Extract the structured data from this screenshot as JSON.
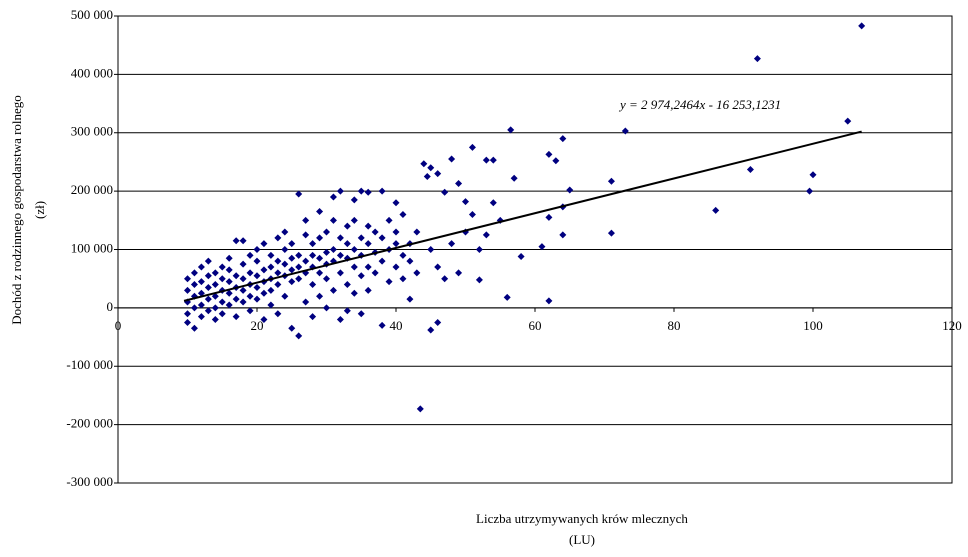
{
  "chart_data": {
    "type": "scatter",
    "x_label": [
      "Liczba utrzymywanych krów mlecznych",
      "(LU)"
    ],
    "y_label": [
      "Dochód z rodzinnego gospodarstwa rolnego",
      "(zł)"
    ],
    "xlim": [
      0,
      120
    ],
    "xticks": [
      0,
      20,
      40,
      60,
      80,
      100,
      120
    ],
    "ylim": [
      -300000,
      500000
    ],
    "yticks": [
      {
        "value": -300000,
        "label": "-300 000"
      },
      {
        "value": -200000,
        "label": "-200 000"
      },
      {
        "value": -100000,
        "label": "-100 000"
      },
      0,
      {
        "value": 100000,
        "label": "100 000"
      },
      {
        "value": 200000,
        "label": "200 000"
      },
      {
        "value": 300000,
        "label": "300 000"
      },
      {
        "value": 400000,
        "label": "400 000"
      },
      {
        "value": 500000,
        "label": "500 000"
      }
    ],
    "grid": true,
    "series": [
      {
        "color": "#000080",
        "x": [
          10,
          10,
          10,
          10,
          10,
          11,
          11,
          11,
          11,
          11,
          12,
          12,
          12,
          12,
          12,
          13,
          13,
          13,
          13,
          13,
          14,
          14,
          14,
          14,
          14,
          15,
          15,
          15,
          15,
          15,
          16,
          16,
          16,
          16,
          16,
          17,
          17,
          17,
          17,
          17,
          18,
          18,
          18,
          18,
          18,
          19,
          19,
          19,
          19,
          19,
          20,
          20,
          20,
          20,
          20,
          21,
          21,
          21,
          21,
          21,
          22,
          22,
          22,
          22,
          22,
          23,
          23,
          23,
          23,
          23,
          24,
          24,
          24,
          24,
          24,
          25,
          25,
          25,
          25,
          25,
          26,
          26,
          26,
          26,
          26,
          27,
          27,
          27,
          27,
          27,
          28,
          28,
          28,
          28,
          28,
          29,
          29,
          29,
          29,
          29,
          30,
          30,
          30,
          30,
          30,
          31,
          31,
          31,
          31,
          31,
          32,
          32,
          32,
          32,
          32,
          33,
          33,
          33,
          33,
          33,
          34,
          34,
          34,
          34,
          34,
          35,
          35,
          35,
          35,
          35,
          36,
          36,
          36,
          36,
          36,
          37,
          37,
          37,
          38,
          38,
          38,
          38,
          39,
          39,
          39,
          40,
          40,
          40,
          40,
          41,
          41,
          41,
          42,
          42,
          42,
          43,
          43,
          44,
          44.5,
          45,
          43.5,
          45,
          46,
          45,
          46,
          46,
          47,
          47,
          48,
          48,
          49,
          49,
          50,
          50,
          51,
          51,
          52,
          52,
          53,
          53,
          54,
          54,
          55,
          56,
          56.5,
          57,
          58,
          61,
          62,
          62,
          62,
          63,
          64,
          64,
          64,
          65,
          71,
          71,
          73,
          86,
          91,
          92,
          99.5,
          100,
          105,
          107
        ],
        "values": [
          30000,
          50000,
          10000,
          -10000,
          -25000,
          40000,
          20000,
          60000,
          0,
          -35000,
          45000,
          25000,
          70000,
          5000,
          -15000,
          35000,
          55000,
          15000,
          80000,
          -5000,
          40000,
          60000,
          20000,
          0,
          -20000,
          50000,
          30000,
          70000,
          10000,
          -10000,
          45000,
          65000,
          25000,
          85000,
          5000,
          55000,
          35000,
          115000,
          15000,
          -15000,
          50000,
          75000,
          30000,
          115000,
          10000,
          60000,
          40000,
          90000,
          20000,
          -5000,
          55000,
          80000,
          35000,
          100000,
          15000,
          65000,
          45000,
          110000,
          25000,
          -20000,
          70000,
          50000,
          90000,
          30000,
          5000,
          60000,
          80000,
          120000,
          40000,
          -10000,
          75000,
          55000,
          100000,
          130000,
          20000,
          65000,
          85000,
          110000,
          45000,
          -35000,
          70000,
          90000,
          195000,
          50000,
          -48000,
          80000,
          60000,
          125000,
          150000,
          10000,
          90000,
          70000,
          110000,
          40000,
          -15000,
          85000,
          120000,
          165000,
          60000,
          20000,
          95000,
          75000,
          130000,
          50000,
          0,
          100000,
          80000,
          150000,
          190000,
          30000,
          90000,
          120000,
          200000,
          60000,
          -20000,
          110000,
          85000,
          140000,
          40000,
          -5000,
          100000,
          150000,
          70000,
          185000,
          25000,
          120000,
          90000,
          200000,
          55000,
          -10000,
          110000,
          140000,
          198000,
          70000,
          30000,
          95000,
          130000,
          60000,
          200000,
          -30000,
          120000,
          80000,
          100000,
          150000,
          45000,
          180000,
          110000,
          70000,
          130000,
          90000,
          160000,
          50000,
          15000,
          110000,
          80000,
          130000,
          60000,
          247000,
          225000,
          240000,
          -173000,
          -38000,
          -25000,
          100000,
          70000,
          230000,
          198000,
          50000,
          255000,
          110000,
          213000,
          60000,
          182000,
          130000,
          275000,
          160000,
          48000,
          100000,
          253000,
          125000,
          253000,
          180000,
          150000,
          18000,
          305000,
          222000,
          88000,
          105000,
          12000,
          155000,
          263000,
          252000,
          290000,
          173000,
          125000,
          202000,
          217000,
          128000,
          303000,
          167000,
          237000,
          427000,
          200000,
          228000,
          320000,
          483000
        ]
      }
    ],
    "trendline": {
      "slope": 2974.2464,
      "intercept": -16253.1231,
      "x_range": [
        9.5,
        107
      ],
      "label": "y = 2 974,2464x - 16 253,1231"
    }
  }
}
